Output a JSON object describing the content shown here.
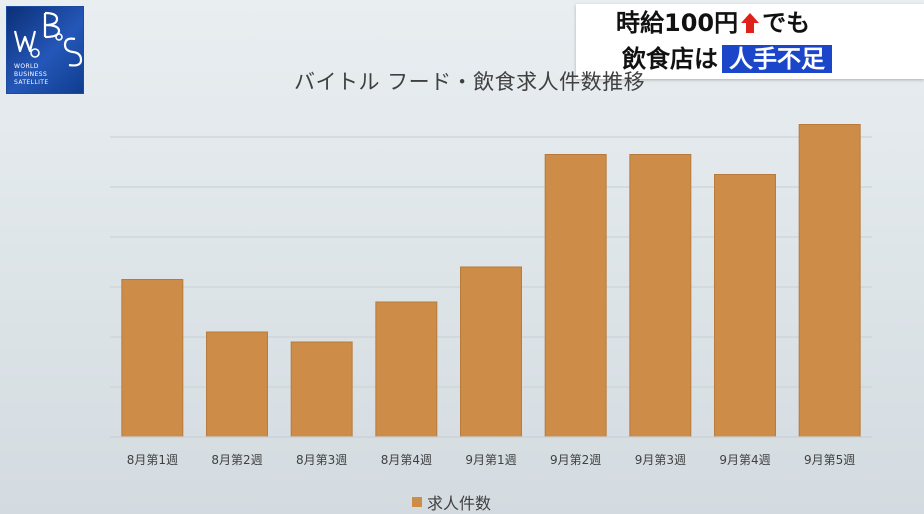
{
  "logo": {
    "letters": "WBS",
    "lines": [
      "WORLD",
      "BUSINESS",
      "SATELLITE"
    ]
  },
  "headline": {
    "line1_before": "時給100円",
    "line1_after": "でも",
    "line2_plain": "飲食店は",
    "line2_highlight": "人手不足",
    "arrow_color": "#e0201b",
    "highlight_color": "#1c46c9",
    "icon": "up-arrow-icon"
  },
  "chart_data": {
    "type": "bar",
    "title": "バイトル フード・飲食求人件数推移",
    "categories": [
      "8月第1週",
      "8月第2週",
      "8月第3週",
      "8月第4週",
      "9月第1週",
      "9月第2週",
      "9月第3週",
      "9月第4週",
      "9月第5週"
    ],
    "series": [
      {
        "name": "求人件数",
        "values": [
          3.15,
          2.1,
          1.9,
          2.7,
          3.4,
          5.65,
          5.65,
          5.25,
          6.25
        ],
        "color": "#cd8d49"
      }
    ],
    "ylim": [
      0,
      6.5
    ],
    "y_ticks_labeled": false,
    "gridlines": true,
    "legend": "bottom",
    "xlabel": "",
    "ylabel": ""
  }
}
